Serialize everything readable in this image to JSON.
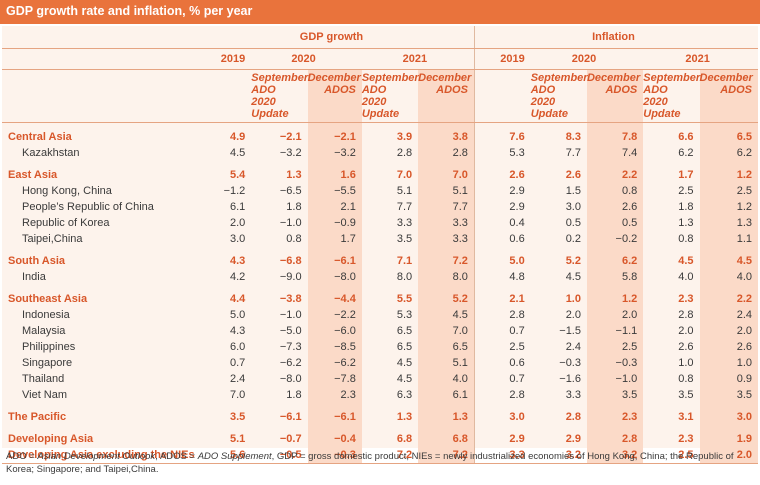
{
  "title": "GDP growth rate and inflation, % per year",
  "headers": {
    "gdp": "GDP growth",
    "inflation": "Inflation",
    "y2019": "2019",
    "y2020": "2020",
    "y2021": "2021",
    "sept": "September ADO 2020 Update",
    "dec": "December ADOS"
  },
  "rows": [
    {
      "label": "Central Asia",
      "group": true,
      "v": [
        "4.9",
        "−2.1",
        "−2.1",
        "3.9",
        "3.8",
        "7.6",
        "8.3",
        "7.8",
        "6.6",
        "6.5"
      ]
    },
    {
      "label": "Kazakhstan",
      "group": false,
      "v": [
        "4.5",
        "−3.2",
        "−3.2",
        "2.8",
        "2.8",
        "5.3",
        "7.7",
        "7.4",
        "6.2",
        "6.2"
      ]
    },
    {
      "label": "East Asia",
      "group": true,
      "gap": true,
      "v": [
        "5.4",
        "1.3",
        "1.6",
        "7.0",
        "7.0",
        "2.6",
        "2.6",
        "2.2",
        "1.7",
        "1.2"
      ]
    },
    {
      "label": "Hong Kong, China",
      "group": false,
      "v": [
        "−1.2",
        "−6.5",
        "−5.5",
        "5.1",
        "5.1",
        "2.9",
        "1.5",
        "0.8",
        "2.5",
        "2.5"
      ]
    },
    {
      "label": "People’s Republic of China",
      "group": false,
      "v": [
        "6.1",
        "1.8",
        "2.1",
        "7.7",
        "7.7",
        "2.9",
        "3.0",
        "2.6",
        "1.8",
        "1.2"
      ]
    },
    {
      "label": "Republic of Korea",
      "group": false,
      "v": [
        "2.0",
        "−1.0",
        "−0.9",
        "3.3",
        "3.3",
        "0.4",
        "0.5",
        "0.5",
        "1.3",
        "1.3"
      ]
    },
    {
      "label": "Taipei,China",
      "group": false,
      "v": [
        "3.0",
        "0.8",
        "1.7",
        "3.5",
        "3.3",
        "0.6",
        "0.2",
        "−0.2",
        "0.8",
        "1.1"
      ]
    },
    {
      "label": "South Asia",
      "group": true,
      "gap": true,
      "v": [
        "4.3",
        "−6.8",
        "−6.1",
        "7.1",
        "7.2",
        "5.0",
        "5.2",
        "6.2",
        "4.5",
        "4.5"
      ]
    },
    {
      "label": "India",
      "group": false,
      "v": [
        "4.2",
        "−9.0",
        "−8.0",
        "8.0",
        "8.0",
        "4.8",
        "4.5",
        "5.8",
        "4.0",
        "4.0"
      ]
    },
    {
      "label": "Southeast Asia",
      "group": true,
      "gap": true,
      "v": [
        "4.4",
        "−3.8",
        "−4.4",
        "5.5",
        "5.2",
        "2.1",
        "1.0",
        "1.2",
        "2.3",
        "2.2"
      ]
    },
    {
      "label": "Indonesia",
      "group": false,
      "v": [
        "5.0",
        "−1.0",
        "−2.2",
        "5.3",
        "4.5",
        "2.8",
        "2.0",
        "2.0",
        "2.8",
        "2.4"
      ]
    },
    {
      "label": "Malaysia",
      "group": false,
      "v": [
        "4.3",
        "−5.0",
        "−6.0",
        "6.5",
        "7.0",
        "0.7",
        "−1.5",
        "−1.1",
        "2.0",
        "2.0"
      ]
    },
    {
      "label": "Philippines",
      "group": false,
      "v": [
        "6.0",
        "−7.3",
        "−8.5",
        "6.5",
        "6.5",
        "2.5",
        "2.4",
        "2.5",
        "2.6",
        "2.6"
      ]
    },
    {
      "label": "Singapore",
      "group": false,
      "v": [
        "0.7",
        "−6.2",
        "−6.2",
        "4.5",
        "5.1",
        "0.6",
        "−0.3",
        "−0.3",
        "1.0",
        "1.0"
      ]
    },
    {
      "label": "Thailand",
      "group": false,
      "v": [
        "2.4",
        "−8.0",
        "−7.8",
        "4.5",
        "4.0",
        "0.7",
        "−1.6",
        "−1.0",
        "0.8",
        "0.9"
      ]
    },
    {
      "label": "Viet Nam",
      "group": false,
      "v": [
        "7.0",
        "1.8",
        "2.3",
        "6.3",
        "6.1",
        "2.8",
        "3.3",
        "3.5",
        "3.5",
        "3.5"
      ]
    },
    {
      "label": "The Pacific",
      "group": true,
      "gap": true,
      "v": [
        "3.5",
        "−6.1",
        "−6.1",
        "1.3",
        "1.3",
        "3.0",
        "2.8",
        "2.3",
        "3.1",
        "3.0"
      ]
    },
    {
      "label": "Developing Asia",
      "group": true,
      "gap": true,
      "v": [
        "5.1",
        "−0.7",
        "−0.4",
        "6.8",
        "6.8",
        "2.9",
        "2.9",
        "2.8",
        "2.3",
        "1.9"
      ]
    },
    {
      "label": "Developing Asia excluding the NIEs",
      "group": true,
      "v": [
        "5.6",
        "−0.5",
        "−0.3",
        "7.2",
        "7.2",
        "3.3",
        "3.2",
        "3.2",
        "2.5",
        "2.0"
      ]
    }
  ],
  "footnote": {
    "ado": "ADO = ",
    "ado_italic": "Asian Development Outlook",
    "ados": ", ADOS = ",
    "ados_italic": "ADO Supplement",
    "rest": ", GDP = gross domestic product, NIEs = newly industrialized economies of Hong Kong, China; the Republic of Korea; Singapore; and Taipei,China."
  },
  "colors": {
    "accent": "#e9733c",
    "panel": "#fdf3ec",
    "highlight": "#fbdac8"
  }
}
